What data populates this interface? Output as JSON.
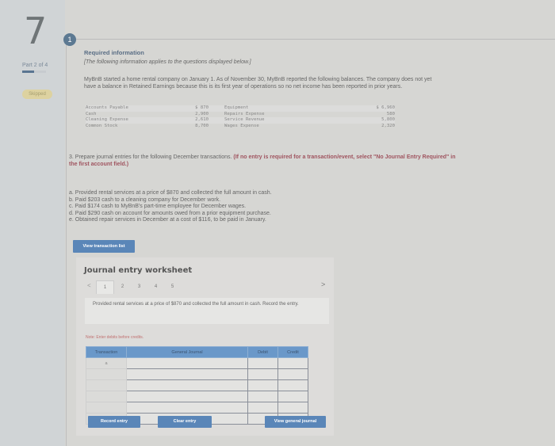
{
  "sidebar": {
    "question_number": "7",
    "part": "Part 2 of 4",
    "part_progress": 0.5,
    "status": "Skipped"
  },
  "step_number": "1",
  "required_title": "Required information",
  "applies_note": "[The following information applies to the questions displayed below.]",
  "intro": "MyBnB started a home rental company on January 1. As of November 30, MyBnB reported the following balances. The company does not yet have a balance in Retained Earnings because this is its first year of operations so no net income has been reported in prior years.",
  "balances": [
    {
      "left_name": "Accounts Payable",
      "left_value": "$ 870",
      "right_name": "Equipment",
      "right_value": "$ 6,960"
    },
    {
      "left_name": "Cash",
      "left_value": "2,900",
      "right_name": "Repairs Expense",
      "right_value": "580"
    },
    {
      "left_name": "Cleaning Expense",
      "left_value": "2,610",
      "right_name": "Service Revenue",
      "right_value": "5,800"
    },
    {
      "left_name": "Common Stock",
      "left_value": "8,700",
      "right_name": "Wages Expense",
      "right_value": "2,320"
    }
  ],
  "question": {
    "text": "3. Prepare journal entries for the following December transactions.",
    "emphasis": "(If no entry is required for a transaction/event, select \"No Journal Entry Required\" in the first account field.)"
  },
  "transactions": [
    "a. Provided rental services at a price of $870 and collected the full amount in cash.",
    "b. Paid $203 cash to a cleaning company for December work.",
    "c. Paid $174 cash to MyBnB's part-time employee for December wages.",
    "d. Paid $290 cash on account for amounts owed from a prior equipment purchase.",
    "e. Obtained repair services in December at a cost of $116, to be paid in January."
  ],
  "view_transaction_list": "View transaction list",
  "worksheet": {
    "title": "Journal entry worksheet",
    "tabs": [
      "1",
      "2",
      "3",
      "4",
      "5"
    ],
    "active_tab": "1",
    "description": "Provided rental services at a price of $870 and collected the full amount in cash. Record the entry.",
    "note": "Note: Enter debits before credits.",
    "columns": [
      "Transaction",
      "General Journal",
      "Debit",
      "Credit"
    ],
    "first_transaction": "a",
    "record_entry": "Record entry",
    "clear_entry": "Clear entry",
    "view_general_journal": "View general journal"
  }
}
